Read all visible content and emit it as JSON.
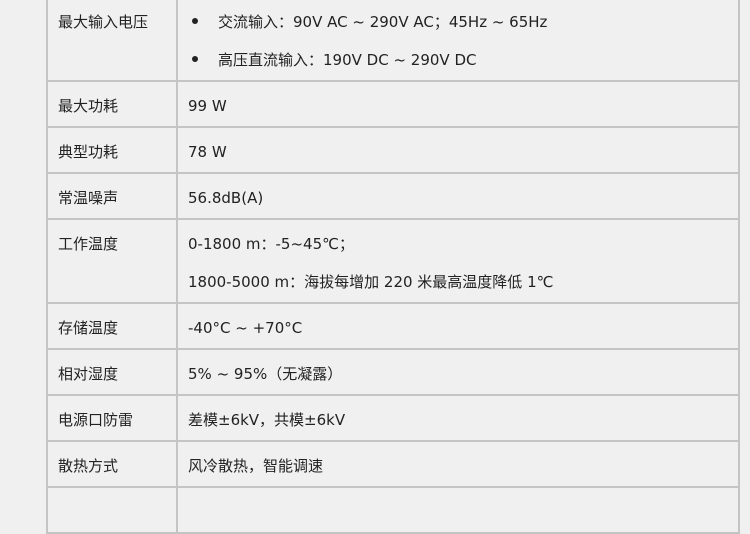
{
  "rows": [
    {
      "label": "最大输入电压",
      "bullets": [
        "交流输入：90V AC ~ 290V AC；45Hz ~ 65Hz",
        "高压直流输入：190V DC ~ 290V DC"
      ]
    },
    {
      "label": "最大功耗",
      "lines": [
        "99 W"
      ]
    },
    {
      "label": "典型功耗",
      "lines": [
        "78 W"
      ]
    },
    {
      "label": "常温噪声",
      "lines": [
        "56.8dB(A)"
      ]
    },
    {
      "label": "工作温度",
      "lines": [
        "0-1800 m：-5~45℃；",
        "1800-5000 m：海拔每增加 220 米最高温度降低 1℃"
      ]
    },
    {
      "label": "存储温度",
      "lines": [
        "-40°C ~ +70°C"
      ]
    },
    {
      "label": "相对湿度",
      "lines": [
        "5% ~ 95%（无凝露）"
      ]
    },
    {
      "label": "电源口防雷",
      "lines": [
        "差模±6kV，共模±6kV"
      ]
    },
    {
      "label": "散热方式",
      "lines": [
        "风冷散热，智能调速"
      ]
    }
  ]
}
